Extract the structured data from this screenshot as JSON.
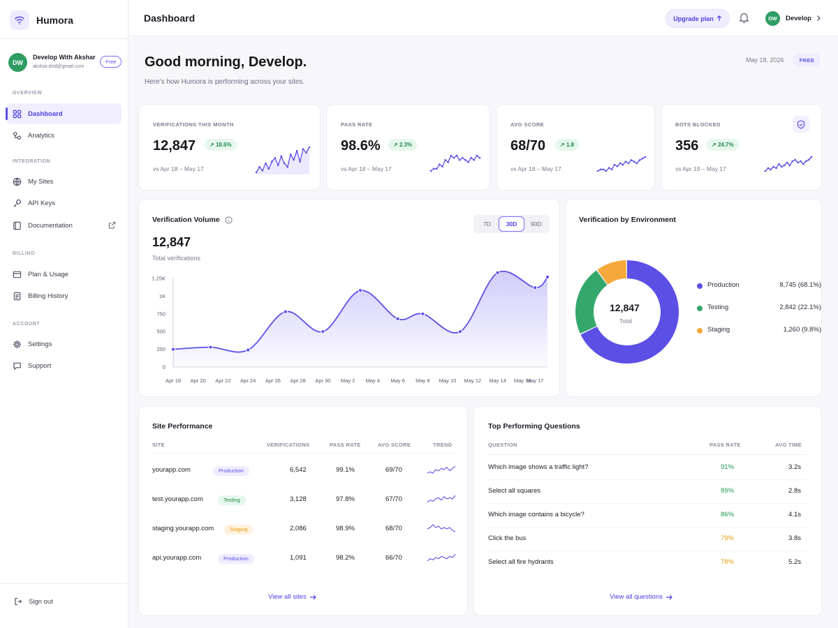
{
  "brand": {
    "name": "Humora"
  },
  "user": {
    "initials": "DW",
    "name": "Develop With Akshar",
    "email": "akshar.dnd@gmail.com",
    "plan": "Free"
  },
  "sidebar": {
    "sections": {
      "overview": "OVERVIEW",
      "integration": "INTEGRATION",
      "billing": "BILLING",
      "account": "ACCOUNT"
    },
    "items": {
      "dashboard": "Dashboard",
      "analytics": "Analytics",
      "sites": "My Sites",
      "keys": "API Keys",
      "docs": "Documentation",
      "plan": "Plan & Usage",
      "history": "Billing History",
      "settings": "Settings",
      "support": "Support"
    },
    "signout": "Sign out"
  },
  "topbar": {
    "title": "Dashboard",
    "upgrade": "Upgrade plan",
    "user_initials": "DW",
    "user_name": "Develop"
  },
  "header": {
    "greeting": "Good morning, Develop.",
    "subtitle": "Here's how Humora is performing across your sites.",
    "date": "May 18, 2026",
    "plan_badge": "FREE"
  },
  "stats": [
    {
      "label": "VERIFICATIONS THIS MONTH",
      "value": "12,847",
      "delta": "18.6%",
      "sub": "vs Apr 18 – May 17",
      "trend": [
        3,
        6,
        4,
        8,
        5,
        9,
        11,
        7,
        12,
        8,
        6,
        13,
        10,
        15,
        9,
        16,
        14,
        17
      ]
    },
    {
      "label": "PASS RATE",
      "value": "98.6%",
      "delta": "2.3%",
      "sub": "vs Apr 18 – May 17",
      "trend": [
        5,
        6,
        6,
        8,
        7,
        10,
        9,
        12,
        11,
        12,
        10,
        11,
        10,
        9,
        11,
        10,
        12,
        11
      ]
    },
    {
      "label": "AVG SCORE",
      "value": "68/70",
      "delta": "1.8",
      "sub": "vs Apr 18 – May 17",
      "trend": [
        4,
        5,
        5,
        4,
        6,
        5,
        8,
        7,
        9,
        8,
        10,
        9,
        11,
        10,
        9,
        11,
        12,
        13
      ]
    },
    {
      "label": "BOTS BLOCKED",
      "value": "356",
      "delta": "24.7%",
      "sub": "vs Apr 18 – May 17",
      "trend": [
        5,
        7,
        6,
        8,
        7,
        10,
        8,
        9,
        11,
        9,
        12,
        13,
        11,
        12,
        10,
        12,
        13,
        15
      ]
    }
  ],
  "volume": {
    "title": "Verification Volume",
    "total": "12,847",
    "total_label": "Total verifications",
    "ranges": [
      "7D",
      "30D",
      "90D"
    ],
    "active_range": "30D"
  },
  "chart_data": {
    "type": "area",
    "x": [
      "Apr 18",
      "Apr 20",
      "Apr 22",
      "Apr 24",
      "Apr 26",
      "Apr 28",
      "Apr 30",
      "May 2",
      "May 4",
      "May 6",
      "May 8",
      "May 10",
      "May 12",
      "May 14",
      "May 16",
      "May 17"
    ],
    "points": [
      {
        "x": "Apr 18",
        "y": 250
      },
      {
        "x": "Apr 21",
        "y": 280
      },
      {
        "x": "Apr 24",
        "y": 240
      },
      {
        "x": "Apr 27",
        "y": 780
      },
      {
        "x": "Apr 30",
        "y": 500
      },
      {
        "x": "May 3",
        "y": 1080
      },
      {
        "x": "May 6",
        "y": 680
      },
      {
        "x": "May 8",
        "y": 750
      },
      {
        "x": "May 11",
        "y": 500
      },
      {
        "x": "May 14",
        "y": 1330
      },
      {
        "x": "May 17",
        "y": 1120
      },
      {
        "x": "May 18",
        "y": 1270
      }
    ],
    "y_ticks": [
      "0",
      "250",
      "500",
      "750",
      "1K",
      "1.25K"
    ],
    "ylim": [
      0,
      1250
    ],
    "color": "#5b4fe6"
  },
  "environment": {
    "title": "Verification by Environment",
    "total": "12,847",
    "total_label": "Total",
    "segments": [
      {
        "name": "Production",
        "value": "8,745 (68.1%)",
        "pct": 68.1,
        "color": "#5b4fe6"
      },
      {
        "name": "Testing",
        "value": "2,842 (22.1%)",
        "pct": 22.1,
        "color": "#34a86b"
      },
      {
        "name": "Staging",
        "value": "1,260 (9.8%)",
        "pct": 9.8,
        "color": "#f5a93a"
      }
    ]
  },
  "sites": {
    "title": "Site Performance",
    "headers": [
      "SITE",
      "VERIFICATIONS",
      "PASS RATE",
      "AVG SCORE",
      "TREND"
    ],
    "rows": [
      {
        "site": "yourapp.com",
        "env": "Production",
        "verifications": "6,542",
        "pass": "99.1%",
        "score": "69/70",
        "trend": [
          3,
          4,
          3,
          6,
          5,
          7,
          6,
          8,
          5,
          7,
          9
        ]
      },
      {
        "site": "test.yourapp.com",
        "env": "Testing",
        "verifications": "3,128",
        "pass": "97.8%",
        "score": "67/70",
        "trend": [
          3,
          5,
          4,
          6,
          7,
          5,
          8,
          6,
          7,
          6,
          9
        ]
      },
      {
        "site": "staging.yourapp.com",
        "env": "Staging",
        "verifications": "2,086",
        "pass": "98.9%",
        "score": "68/70",
        "trend": [
          5,
          6,
          8,
          6,
          7,
          5,
          6,
          5,
          6,
          4,
          3
        ]
      },
      {
        "site": "api.yourapp.com",
        "env": "Production",
        "verifications": "1,091",
        "pass": "98.2%",
        "score": "66/70",
        "trend": [
          3,
          5,
          4,
          6,
          5,
          7,
          6,
          5,
          7,
          6,
          9
        ]
      }
    ],
    "view_all": "View all sites"
  },
  "questions": {
    "title": "Top Performing Questions",
    "headers": [
      "QUESTION",
      "PASS RATE",
      "AVG TIME"
    ],
    "rows": [
      {
        "q": "Which image shows a traffic light?",
        "pass": "91%",
        "time": "3.2s",
        "color": "#1f9a4f"
      },
      {
        "q": "Select all squares",
        "pass": "89%",
        "time": "2.8s",
        "color": "#1f9a4f"
      },
      {
        "q": "Which image contains a bicycle?",
        "pass": "86%",
        "time": "4.1s",
        "color": "#1f9a4f"
      },
      {
        "q": "Click the bus",
        "pass": "79%",
        "time": "3.8s",
        "color": "#e69a12"
      },
      {
        "q": "Select all fire hydrants",
        "pass": "78%",
        "time": "5.2s",
        "color": "#e69a12"
      }
    ],
    "view_all": "View all questions"
  },
  "env_colors": {
    "Production": [
      "#efedff",
      "#5b4fe6"
    ],
    "Testing": [
      "#e6f7ec",
      "#1f8a4c"
    ],
    "Staging": [
      "#fff2dc",
      "#e69a12"
    ]
  },
  "icons": [
    "signal-logo-icon",
    "grid-icon",
    "analytics-icon",
    "globe-icon",
    "key-icon",
    "book-icon",
    "external-link-icon",
    "credit-card-icon",
    "receipt-icon",
    "gear-icon",
    "chat-icon",
    "signout-icon",
    "bell-icon",
    "chevron-right-icon",
    "arrow-up-icon",
    "shield-icon",
    "info-icon",
    "arrow-right-icon"
  ]
}
